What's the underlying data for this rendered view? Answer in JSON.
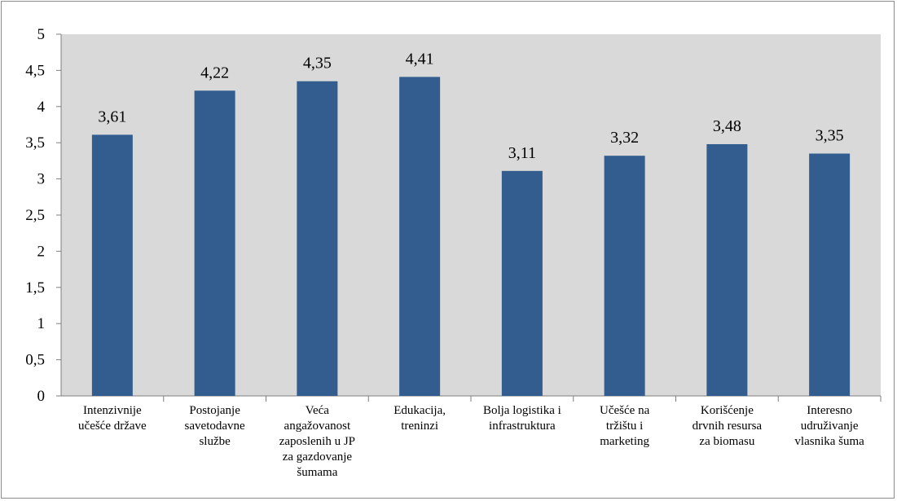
{
  "chart_data": {
    "type": "bar",
    "categories": [
      [
        "Intenzivnije",
        "učešće države"
      ],
      [
        "Postojanje",
        "savetodavne",
        "službe"
      ],
      [
        "Veća",
        "angažovanost",
        "zaposlenih u JP",
        "za gazdovanje",
        "šumama"
      ],
      [
        "Edukacija,",
        "treninzi"
      ],
      [
        "Bolja logistika i",
        "infrastruktura"
      ],
      [
        "Učešće na",
        "tržištu i",
        "marketing"
      ],
      [
        "Korišćenje",
        "drvnih resursa",
        "za biomasu"
      ],
      [
        "Interesno",
        "udruživanje",
        "vlasnika šuma"
      ]
    ],
    "values": [
      3.61,
      4.22,
      4.35,
      4.41,
      3.11,
      3.32,
      3.48,
      3.35
    ],
    "value_labels": [
      "3,61",
      "4,22",
      "4,35",
      "4,41",
      "3,11",
      "3,32",
      "3,48",
      "3,35"
    ],
    "yticks": [
      0,
      0.5,
      1,
      1.5,
      2,
      2.5,
      3,
      3.5,
      4,
      4.5,
      5
    ],
    "ytick_labels": [
      "0",
      "0,5",
      "1",
      "1,5",
      "2",
      "2,5",
      "3",
      "3,5",
      "4",
      "4,5",
      "5"
    ],
    "ylim": [
      0,
      5
    ],
    "grid": false,
    "legend": "none",
    "colors": {
      "bar": "#335d8f",
      "plot_background": "#d9d9d9",
      "axis": "#7f7f7f"
    }
  }
}
